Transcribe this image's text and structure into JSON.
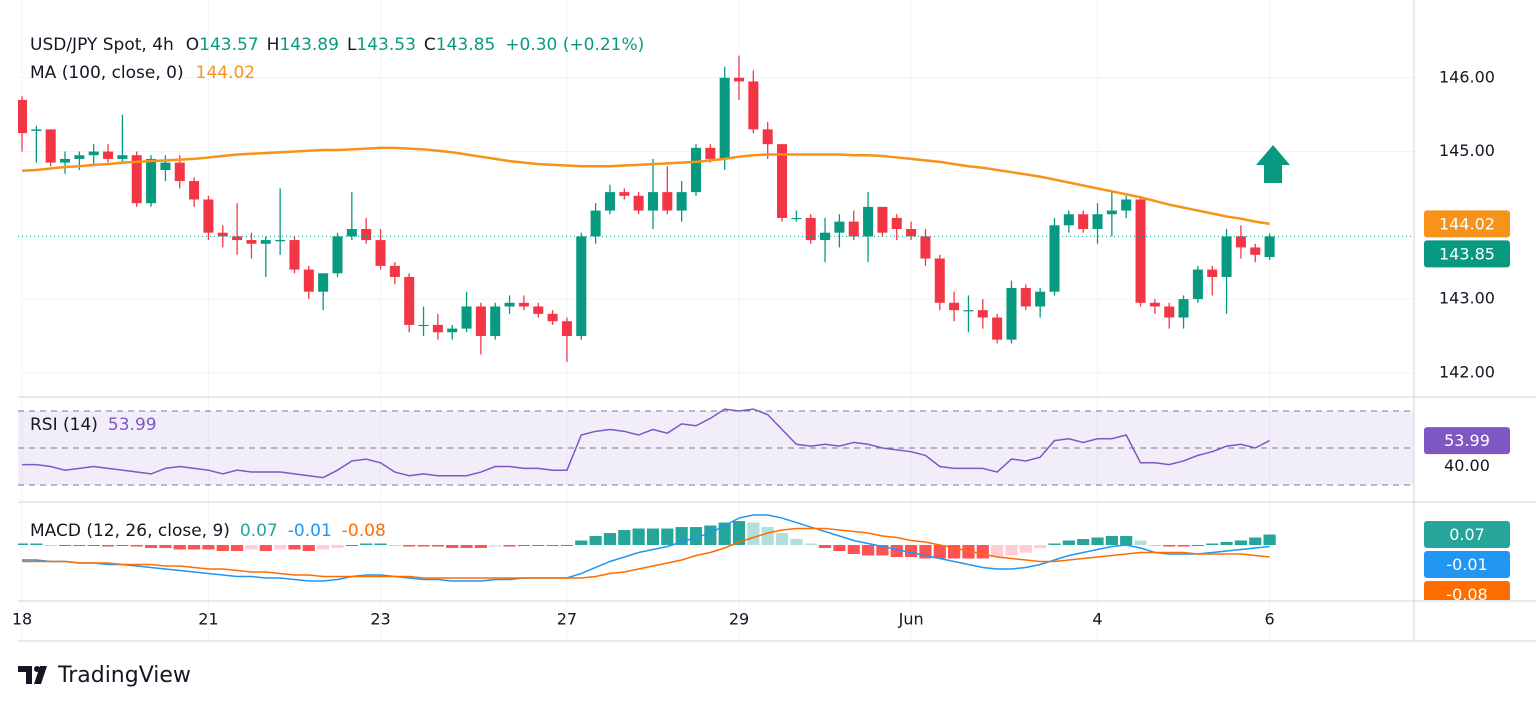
{
  "chart_data": [
    {
      "type": "candlestick",
      "title": "USD/JPY Spot, 4h",
      "ohlc_letters": [
        "O",
        "H",
        "L",
        "C"
      ],
      "change": "+0.30 (+0.21%)",
      "up_color": "#089981",
      "down_color": "#f23645",
      "grid": true,
      "price_line": true,
      "ylim": [
        141.7,
        146.81
      ],
      "yticks": [
        {
          "value": 146,
          "label": "146.00"
        },
        {
          "value": 145,
          "label": "145.00"
        },
        {
          "value": 143,
          "label": "143.00"
        },
        {
          "value": 142,
          "label": "142.00"
        }
      ],
      "xlim": [
        -0.28,
        97.07
      ],
      "xticks": [
        {
          "value": 0,
          "label": "18"
        },
        {
          "value": 13,
          "label": "21"
        },
        {
          "value": 25,
          "label": "23"
        },
        {
          "value": 38,
          "label": "27"
        },
        {
          "value": 50,
          "label": "29"
        },
        {
          "value": 62,
          "label": "Jun"
        },
        {
          "value": 75,
          "label": "4"
        },
        {
          "value": 87,
          "label": "6"
        }
      ],
      "candles": [
        [
          145.7,
          145.75,
          145.0,
          145.25
        ],
        [
          145.28,
          145.35,
          144.85,
          145.3
        ],
        [
          145.3,
          145.3,
          144.8,
          144.85
        ],
        [
          144.85,
          145.0,
          144.7,
          144.9
        ],
        [
          144.9,
          145.0,
          144.75,
          144.95
        ],
        [
          144.95,
          145.1,
          144.8,
          145.0
        ],
        [
          145.0,
          145.1,
          144.85,
          144.9
        ],
        [
          144.9,
          145.5,
          144.85,
          144.95
        ],
        [
          144.95,
          145.0,
          144.25,
          144.3
        ],
        [
          144.3,
          144.95,
          144.25,
          144.9
        ],
        [
          144.75,
          144.95,
          144.6,
          144.85
        ],
        [
          144.85,
          144.95,
          144.5,
          144.6
        ],
        [
          144.6,
          144.65,
          144.25,
          144.35
        ],
        [
          144.35,
          144.4,
          143.8,
          143.9
        ],
        [
          143.9,
          144.0,
          143.7,
          143.85
        ],
        [
          143.85,
          144.3,
          143.6,
          143.8
        ],
        [
          143.8,
          143.9,
          143.55,
          143.75
        ],
        [
          143.75,
          143.85,
          143.3,
          143.8
        ],
        [
          143.8,
          144.5,
          143.6,
          143.8
        ],
        [
          143.8,
          143.85,
          143.35,
          143.4
        ],
        [
          143.4,
          143.45,
          143.0,
          143.1
        ],
        [
          143.1,
          143.35,
          142.85,
          143.35
        ],
        [
          143.35,
          143.9,
          143.3,
          143.85
        ],
        [
          143.85,
          144.45,
          143.8,
          143.95
        ],
        [
          143.95,
          144.1,
          143.75,
          143.8
        ],
        [
          143.8,
          143.95,
          143.4,
          143.45
        ],
        [
          143.45,
          143.5,
          143.2,
          143.3
        ],
        [
          143.3,
          143.35,
          142.55,
          142.65
        ],
        [
          142.65,
          142.9,
          142.5,
          142.65
        ],
        [
          142.65,
          142.8,
          142.45,
          142.55
        ],
        [
          142.55,
          142.65,
          142.45,
          142.6
        ],
        [
          142.6,
          143.1,
          142.55,
          142.9
        ],
        [
          142.9,
          142.95,
          142.25,
          142.5
        ],
        [
          142.5,
          142.95,
          142.45,
          142.9
        ],
        [
          142.9,
          143.05,
          142.8,
          142.95
        ],
        [
          142.95,
          143.05,
          142.85,
          142.9
        ],
        [
          142.9,
          142.95,
          142.75,
          142.8
        ],
        [
          142.8,
          142.85,
          142.65,
          142.7
        ],
        [
          142.7,
          142.75,
          142.15,
          142.5
        ],
        [
          142.5,
          143.9,
          142.45,
          143.85
        ],
        [
          143.85,
          144.3,
          143.75,
          144.2
        ],
        [
          144.2,
          144.55,
          144.15,
          144.45
        ],
        [
          144.45,
          144.5,
          144.35,
          144.4
        ],
        [
          144.4,
          144.45,
          144.15,
          144.2
        ],
        [
          144.2,
          144.9,
          143.95,
          144.45
        ],
        [
          144.45,
          144.8,
          144.15,
          144.2
        ],
        [
          144.2,
          144.6,
          144.05,
          144.45
        ],
        [
          144.45,
          145.1,
          144.4,
          145.05
        ],
        [
          145.05,
          145.1,
          144.85,
          144.9
        ],
        [
          144.9,
          146.15,
          144.75,
          146.0
        ],
        [
          146.0,
          146.3,
          145.7,
          145.95
        ],
        [
          145.95,
          146.1,
          145.25,
          145.3
        ],
        [
          145.3,
          145.4,
          144.9,
          145.1
        ],
        [
          145.1,
          145.1,
          144.05,
          144.1
        ],
        [
          144.1,
          144.2,
          144.05,
          144.1
        ],
        [
          144.1,
          144.15,
          143.75,
          143.8
        ],
        [
          143.8,
          144.1,
          143.5,
          143.9
        ],
        [
          143.9,
          144.15,
          143.7,
          144.05
        ],
        [
          144.05,
          144.2,
          143.8,
          143.85
        ],
        [
          143.85,
          144.45,
          143.5,
          144.25
        ],
        [
          144.25,
          144.25,
          143.85,
          143.9
        ],
        [
          144.1,
          144.15,
          143.8,
          143.95
        ],
        [
          143.95,
          144.05,
          143.8,
          143.85
        ],
        [
          143.85,
          143.95,
          143.45,
          143.55
        ],
        [
          143.55,
          143.6,
          142.85,
          142.95
        ],
        [
          142.95,
          143.1,
          142.7,
          142.85
        ],
        [
          142.85,
          143.05,
          142.55,
          142.85
        ],
        [
          142.85,
          143.0,
          142.6,
          142.75
        ],
        [
          142.75,
          142.8,
          142.4,
          142.45
        ],
        [
          142.45,
          143.25,
          142.4,
          143.15
        ],
        [
          143.15,
          143.2,
          142.85,
          142.9
        ],
        [
          142.9,
          143.15,
          142.75,
          143.1
        ],
        [
          143.1,
          144.1,
          143.05,
          144.0
        ],
        [
          144.0,
          144.2,
          143.9,
          144.15
        ],
        [
          144.15,
          144.2,
          143.9,
          143.95
        ],
        [
          143.95,
          144.3,
          143.75,
          144.15
        ],
        [
          144.15,
          144.45,
          143.85,
          144.2
        ],
        [
          144.2,
          144.4,
          144.1,
          144.35
        ],
        [
          144.35,
          144.38,
          142.9,
          142.95
        ],
        [
          142.95,
          143.0,
          142.8,
          142.9
        ],
        [
          142.9,
          142.95,
          142.6,
          142.75
        ],
        [
          142.75,
          143.05,
          142.6,
          143.0
        ],
        [
          143.0,
          143.45,
          142.95,
          143.4
        ],
        [
          143.4,
          143.45,
          143.05,
          143.3
        ],
        [
          143.3,
          143.95,
          142.8,
          143.85
        ],
        [
          143.85,
          144.0,
          143.55,
          143.7
        ],
        [
          143.7,
          143.75,
          143.5,
          143.6
        ],
        [
          143.57,
          143.89,
          143.53,
          143.85
        ]
      ],
      "overlay": {
        "name": "MA (100, close, 0)",
        "color": "#f7931a",
        "values": [
          144.74,
          144.75,
          144.77,
          144.79,
          144.8,
          144.82,
          144.83,
          144.85,
          144.86,
          144.87,
          144.88,
          144.89,
          144.9,
          144.92,
          144.94,
          144.96,
          144.97,
          144.98,
          144.99,
          145.0,
          145.01,
          145.02,
          145.02,
          145.03,
          145.04,
          145.05,
          145.05,
          145.04,
          145.03,
          145.01,
          144.99,
          144.96,
          144.93,
          144.9,
          144.87,
          144.85,
          144.83,
          144.82,
          144.81,
          144.8,
          144.8,
          144.8,
          144.81,
          144.82,
          144.83,
          144.84,
          144.85,
          144.86,
          144.88,
          144.9,
          144.93,
          144.95,
          144.96,
          144.96,
          144.96,
          144.96,
          144.96,
          144.96,
          144.95,
          144.95,
          144.94,
          144.92,
          144.9,
          144.88,
          144.86,
          144.83,
          144.8,
          144.78,
          144.75,
          144.72,
          144.69,
          144.66,
          144.62,
          144.58,
          144.54,
          144.5,
          144.46,
          144.42,
          144.38,
          144.33,
          144.28,
          144.24,
          144.2,
          144.16,
          144.12,
          144.09,
          144.05,
          144.02
        ]
      }
    },
    {
      "type": "line",
      "name": "RSI (14)",
      "color": "#7e57c2",
      "ylim": [
        24.6,
        77.0
      ],
      "yticks": [
        {
          "value": 40,
          "label": "40.00"
        }
      ],
      "levels": [
        30,
        50,
        70
      ],
      "values": [
        41,
        41,
        40,
        38,
        39,
        40,
        39,
        38,
        37,
        36,
        39,
        40,
        39,
        38,
        36,
        38,
        37,
        37,
        37,
        36,
        35,
        34,
        38,
        43,
        44,
        42,
        37,
        35,
        36,
        35,
        35,
        35,
        37,
        40,
        40,
        39,
        39,
        38,
        38,
        57,
        59,
        60,
        59,
        57,
        60,
        58,
        63,
        62,
        66,
        71,
        70,
        71,
        68,
        60,
        52,
        51,
        52,
        51,
        53,
        52,
        50,
        49,
        48,
        46,
        40,
        39,
        39,
        39,
        37,
        44,
        43,
        45,
        54,
        55,
        53,
        55,
        55,
        57,
        42,
        42,
        41,
        43,
        46,
        48,
        51,
        52,
        50,
        53.99
      ]
    },
    {
      "type": "macd",
      "name": "MACD (12, 26, close, 9)",
      "ylim": [
        -0.367,
        0.267
      ],
      "histogram": {
        "colors": [
          "#26a69a",
          "#b2dfdb",
          "#ff5252",
          "#ffcdd2"
        ],
        "values": [
          0.01,
          0.01,
          0,
          0,
          0,
          0,
          -0.01,
          0,
          -0.01,
          -0.02,
          -0.02,
          -0.03,
          -0.03,
          -0.03,
          -0.04,
          -0.04,
          -0.03,
          -0.04,
          -0.03,
          -0.03,
          -0.04,
          -0.03,
          -0.02,
          0,
          0.01,
          0.01,
          0,
          -0.01,
          -0.01,
          -0.01,
          -0.02,
          -0.02,
          -0.02,
          -0.01,
          -0.01,
          0,
          0,
          0,
          0,
          0.03,
          0.06,
          0.08,
          0.1,
          0.11,
          0.11,
          0.11,
          0.12,
          0.12,
          0.13,
          0.15,
          0.16,
          0.15,
          0.12,
          0.08,
          0.04,
          0.01,
          -0.02,
          -0.04,
          -0.06,
          -0.07,
          -0.07,
          -0.08,
          -0.08,
          -0.09,
          -0.09,
          -0.09,
          -0.09,
          -0.09,
          -0.08,
          -0.07,
          -0.05,
          -0.02,
          0.01,
          0.03,
          0.04,
          0.05,
          0.06,
          0.06,
          0.03,
          0,
          -0.01,
          -0.01,
          0,
          0.01,
          0.02,
          0.03,
          0.05,
          0.07
        ]
      },
      "series": [
        {
          "color": "#2196f3",
          "values": [
            -0.1,
            -0.1,
            -0.11,
            -0.11,
            -0.12,
            -0.12,
            -0.13,
            -0.13,
            -0.14,
            -0.15,
            -0.16,
            -0.17,
            -0.18,
            -0.19,
            -0.2,
            -0.21,
            -0.21,
            -0.22,
            -0.22,
            -0.23,
            -0.24,
            -0.24,
            -0.23,
            -0.21,
            -0.2,
            -0.2,
            -0.21,
            -0.22,
            -0.23,
            -0.23,
            -0.24,
            -0.24,
            -0.24,
            -0.23,
            -0.23,
            -0.22,
            -0.22,
            -0.22,
            -0.22,
            -0.19,
            -0.15,
            -0.11,
            -0.08,
            -0.05,
            -0.03,
            -0.01,
            0.02,
            0.05,
            0.08,
            0.13,
            0.18,
            0.2,
            0.2,
            0.18,
            0.15,
            0.12,
            0.09,
            0.06,
            0.03,
            0.01,
            -0.01,
            -0.03,
            -0.05,
            -0.07,
            -0.09,
            -0.11,
            -0.13,
            -0.15,
            -0.16,
            -0.16,
            -0.15,
            -0.13,
            -0.1,
            -0.07,
            -0.05,
            -0.03,
            -0.01,
            0.0,
            -0.02,
            -0.05,
            -0.06,
            -0.06,
            -0.06,
            -0.05,
            -0.04,
            -0.03,
            -0.02,
            -0.01
          ]
        },
        {
          "color": "#ff6d00",
          "values": [
            -0.11,
            -0.11,
            -0.11,
            -0.11,
            -0.12,
            -0.12,
            -0.12,
            -0.13,
            -0.13,
            -0.13,
            -0.14,
            -0.14,
            -0.15,
            -0.16,
            -0.16,
            -0.17,
            -0.18,
            -0.18,
            -0.19,
            -0.2,
            -0.2,
            -0.21,
            -0.21,
            -0.21,
            -0.21,
            -0.21,
            -0.21,
            -0.21,
            -0.22,
            -0.22,
            -0.22,
            -0.22,
            -0.22,
            -0.22,
            -0.22,
            -0.22,
            -0.22,
            -0.22,
            -0.22,
            -0.22,
            -0.21,
            -0.19,
            -0.18,
            -0.16,
            -0.14,
            -0.12,
            -0.1,
            -0.07,
            -0.05,
            -0.02,
            0.02,
            0.05,
            0.08,
            0.1,
            0.11,
            0.11,
            0.11,
            0.1,
            0.09,
            0.08,
            0.06,
            0.05,
            0.03,
            0.02,
            0.0,
            -0.02,
            -0.04,
            -0.06,
            -0.08,
            -0.09,
            -0.1,
            -0.11,
            -0.11,
            -0.1,
            -0.09,
            -0.08,
            -0.07,
            -0.06,
            -0.05,
            -0.05,
            -0.05,
            -0.05,
            -0.06,
            -0.06,
            -0.06,
            -0.06,
            -0.07,
            -0.08
          ]
        }
      ]
    }
  ],
  "footer": {
    "brand": "TradingView"
  }
}
